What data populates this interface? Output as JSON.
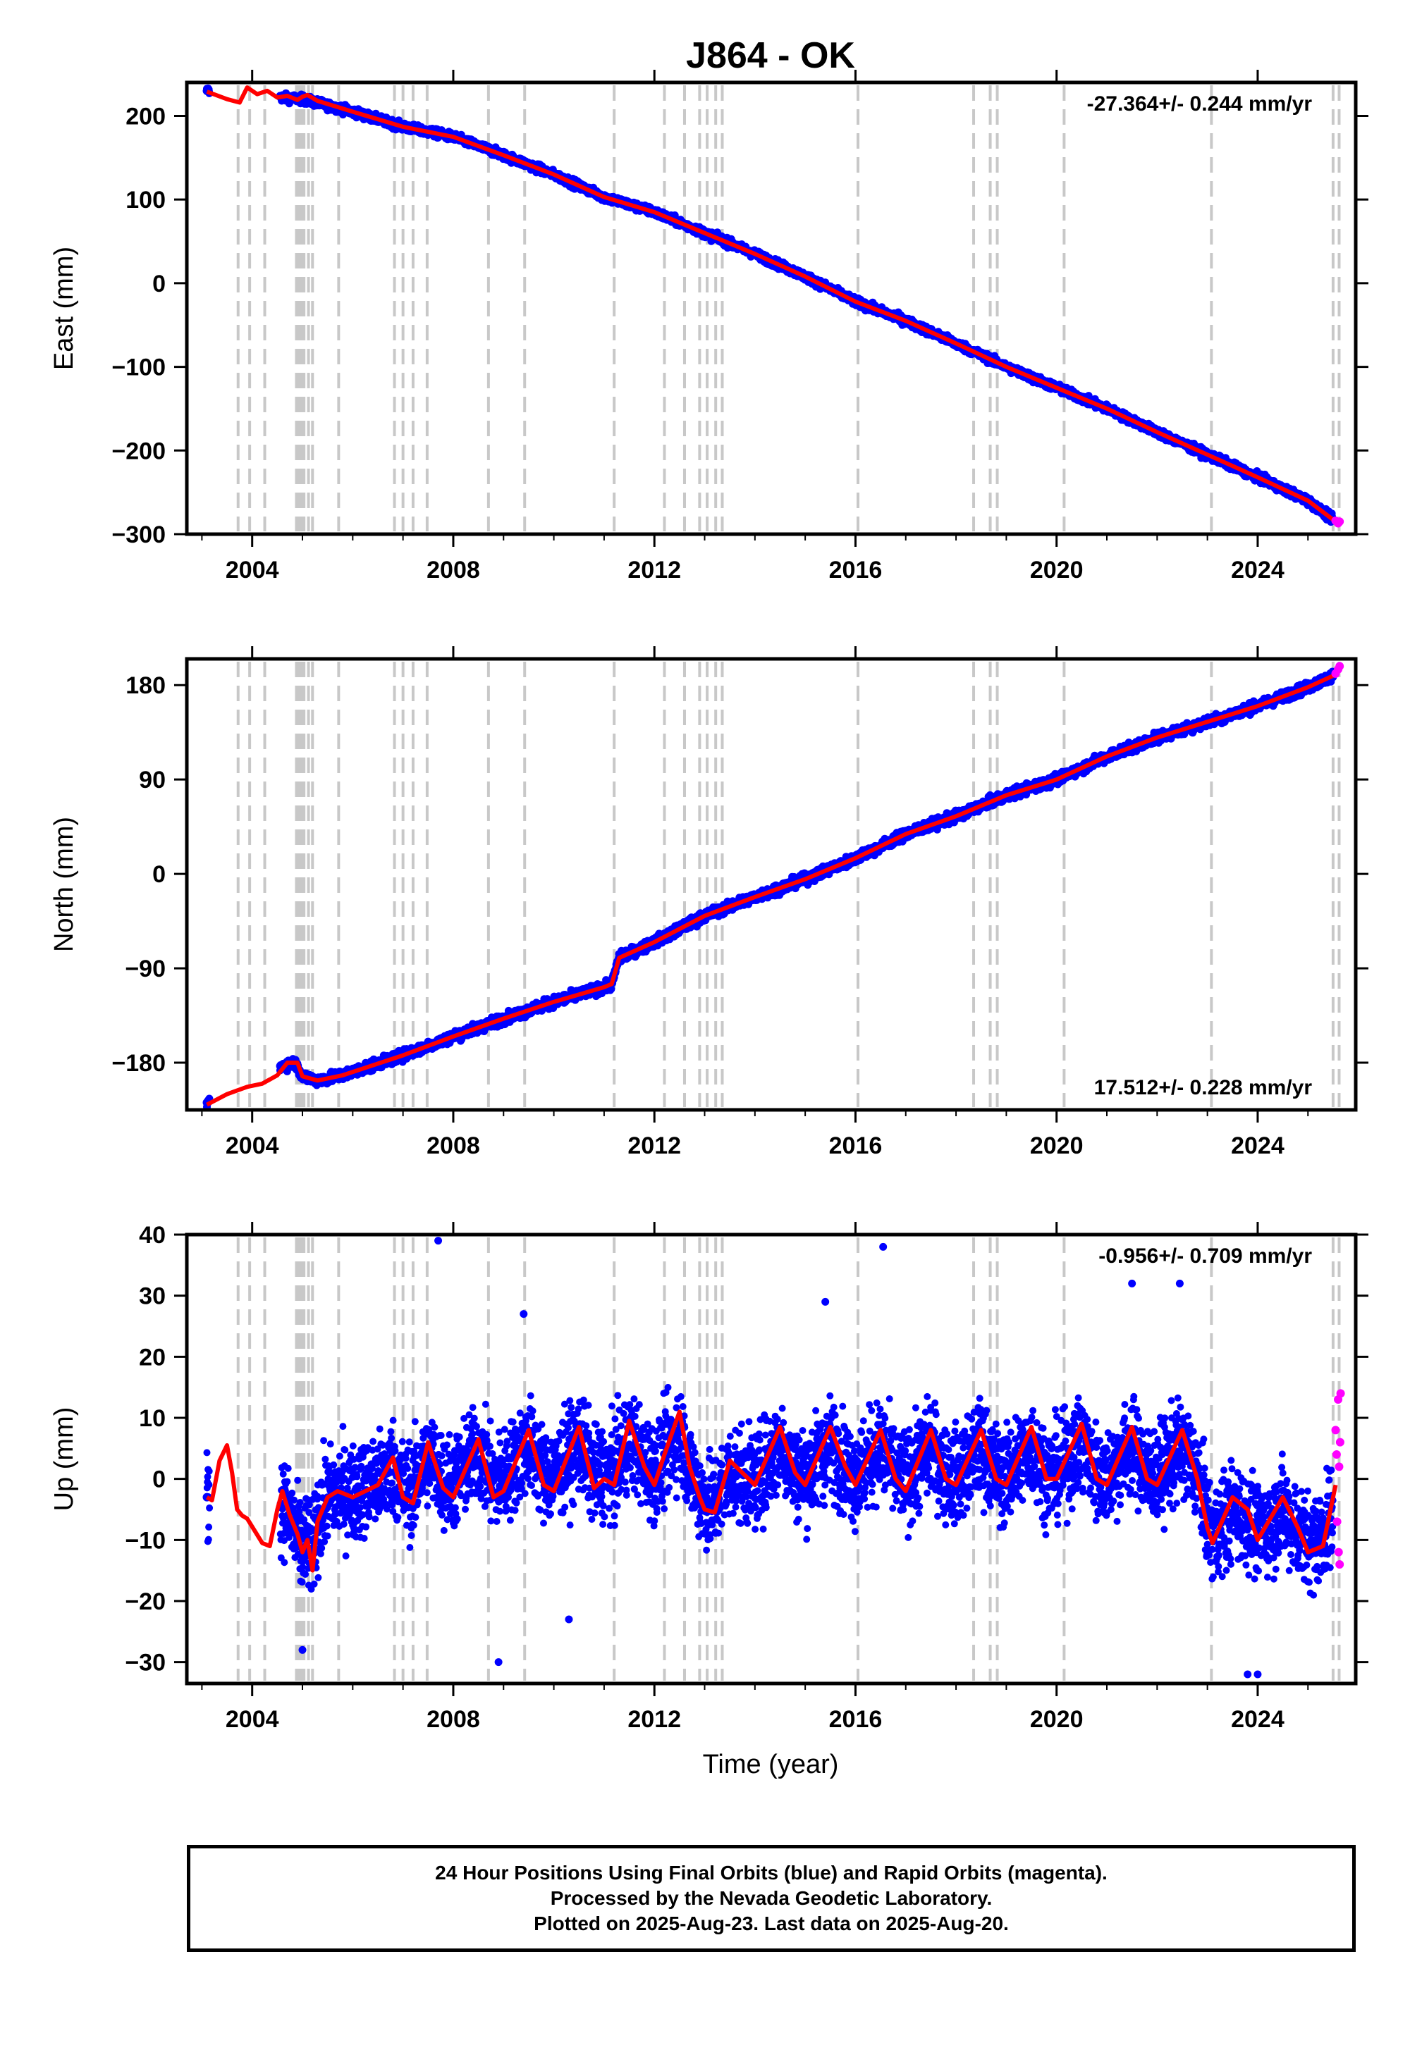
{
  "title": "J864 - OK",
  "xlabel": "Time (year)",
  "caption": {
    "line1": "24 Hour Positions Using Final Orbits (blue) and Rapid Orbits (magenta).",
    "line2": "Processed by the Nevada Geodetic Laboratory.",
    "line3": "Plotted on 2025-Aug-23. Last data on 2025-Aug-20."
  },
  "colors": {
    "final_orbits": "#0000ff",
    "rapid_orbits": "#ff00ff",
    "model_fit": "#ff0000",
    "equipment_change_lines": "#c8c8c8"
  },
  "chart_data": [
    {
      "type": "scatter",
      "name": "east",
      "ylabel": "East (mm)",
      "xlim": [
        2002.7,
        2025.95
      ],
      "ylim": [
        -300,
        240
      ],
      "xticks": [
        2004,
        2008,
        2012,
        2016,
        2020,
        2024
      ],
      "yticks": [
        -300,
        -200,
        -100,
        0,
        100,
        200
      ],
      "ytick_labels": [
        "−300",
        "−200",
        "−100",
        "0",
        "100",
        "200"
      ],
      "velocity_label": "-27.364+/- 0.244 mm/yr",
      "velocity_label_position": "top-right",
      "breaks": [
        2003.72,
        2003.95,
        2004.25,
        2004.88,
        2004.93,
        2004.98,
        2005.03,
        2005.12,
        2005.2,
        2005.72,
        2006.83,
        2007.0,
        2007.2,
        2007.48,
        2008.7,
        2009.42,
        2011.2,
        2012.2,
        2012.6,
        2012.9,
        2013.05,
        2013.22,
        2013.35,
        2016.05,
        2018.35,
        2018.68,
        2018.82,
        2020.15,
        2023.08,
        2025.5,
        2025.62
      ],
      "fit_x": [
        2003.1,
        2003.5,
        2003.75,
        2003.9,
        2004.1,
        2004.3,
        2004.5,
        2004.7,
        2004.9,
        2005.0,
        2005.1,
        2005.3,
        2006.0,
        2007.0,
        2008.0,
        2009.0,
        2010.0,
        2011.0,
        2012.0,
        2013.0,
        2014.0,
        2015.0,
        2016.0,
        2017.0,
        2018.0,
        2019.0,
        2020.0,
        2021.0,
        2022.0,
        2023.0,
        2024.0,
        2025.0,
        2025.55
      ],
      "fit_y": [
        229,
        220,
        216,
        234,
        226,
        230,
        222,
        224,
        219,
        223,
        225,
        218,
        205,
        187,
        175,
        153,
        130,
        103,
        85,
        60,
        35,
        8,
        -22,
        -45,
        -72,
        -100,
        -125,
        -150,
        -178,
        -205,
        -232,
        -260,
        -285
      ],
      "final_x": [
        2003.1,
        2004.6,
        2005.0,
        2006.0,
        2007.0,
        2008.0,
        2009.0,
        2010.0,
        2011.0,
        2012.0,
        2013.0,
        2014.0,
        2015.0,
        2016.0,
        2017.0,
        2018.0,
        2019.0,
        2020.0,
        2021.0,
        2022.0,
        2023.0,
        2024.0,
        2025.0,
        2025.5
      ],
      "final_y": [
        230,
        222,
        220,
        205,
        187,
        175,
        153,
        130,
        103,
        85,
        60,
        35,
        8,
        -22,
        -45,
        -72,
        -100,
        -125,
        -150,
        -178,
        -205,
        -232,
        -260,
        -283
      ],
      "final_noise": 3.5,
      "rapid_x": [
        2025.55,
        2025.6,
        2025.63
      ],
      "rapid_y": [
        -284,
        -287,
        -285
      ]
    },
    {
      "type": "scatter",
      "name": "north",
      "ylabel": "North (mm)",
      "xlim": [
        2002.7,
        2025.95
      ],
      "ylim": [
        -225,
        205
      ],
      "xticks": [
        2004,
        2008,
        2012,
        2016,
        2020,
        2024
      ],
      "yticks": [
        -180,
        -90,
        0,
        90,
        180
      ],
      "ytick_labels": [
        "−180",
        "−90",
        "0",
        "90",
        "180"
      ],
      "velocity_label": "17.512+/- 0.228 mm/yr",
      "velocity_label_position": "bottom-right",
      "breaks": [
        2003.72,
        2003.95,
        2004.25,
        2004.88,
        2004.93,
        2004.98,
        2005.03,
        2005.12,
        2005.2,
        2005.72,
        2006.83,
        2007.0,
        2007.2,
        2007.48,
        2008.7,
        2009.42,
        2011.2,
        2012.2,
        2012.6,
        2012.9,
        2013.05,
        2013.22,
        2013.35,
        2016.05,
        2018.35,
        2018.68,
        2018.82,
        2020.15,
        2023.08,
        2025.5,
        2025.62
      ],
      "fit_x": [
        2003.1,
        2003.5,
        2003.9,
        2004.2,
        2004.5,
        2004.7,
        2004.9,
        2005.0,
        2005.3,
        2005.8,
        2007.0,
        2008.0,
        2009.0,
        2010.0,
        2011.0,
        2011.15,
        2011.3,
        2012.0,
        2013.0,
        2014.0,
        2015.0,
        2016.0,
        2017.0,
        2018.0,
        2019.0,
        2020.0,
        2021.0,
        2022.0,
        2023.0,
        2024.0,
        2025.0,
        2025.55
      ],
      "fit_y": [
        -220,
        -210,
        -203,
        -200,
        -192,
        -180,
        -180,
        -193,
        -197,
        -192,
        -173,
        -155,
        -138,
        -122,
        -108,
        -105,
        -80,
        -65,
        -40,
        -22,
        -5,
        15,
        38,
        55,
        75,
        90,
        112,
        130,
        145,
        160,
        178,
        190
      ],
      "final_x": [
        2003.1,
        2004.6,
        2004.85,
        2005.0,
        2005.3,
        2005.8,
        2007.0,
        2008.0,
        2009.0,
        2010.0,
        2011.0,
        2011.15,
        2011.3,
        2012.0,
        2013.0,
        2014.0,
        2015.0,
        2016.0,
        2017.0,
        2018.0,
        2019.0,
        2020.0,
        2021.0,
        2022.0,
        2023.0,
        2024.0,
        2025.0,
        2025.5
      ],
      "final_y": [
        -218,
        -183,
        -180,
        -193,
        -197,
        -192,
        -173,
        -155,
        -138,
        -122,
        -108,
        -105,
        -80,
        -65,
        -40,
        -22,
        -5,
        15,
        38,
        55,
        75,
        90,
        112,
        130,
        145,
        160,
        178,
        189
      ],
      "final_noise": 3.5,
      "rapid_x": [
        2025.55,
        2025.6,
        2025.63
      ],
      "rapid_y": [
        191,
        195,
        198
      ]
    },
    {
      "type": "scatter",
      "name": "up",
      "ylabel": "Up (mm)",
      "xlim": [
        2002.7,
        2025.95
      ],
      "ylim": [
        -33.5,
        40
      ],
      "xticks": [
        2004,
        2008,
        2012,
        2016,
        2020,
        2024
      ],
      "yticks": [
        -30,
        -20,
        -10,
        0,
        10,
        20,
        30,
        40
      ],
      "ytick_labels": [
        "−30",
        "−20",
        "−10",
        "0",
        "10",
        "20",
        "30",
        "40"
      ],
      "velocity_label": "-0.956+/- 0.709 mm/yr",
      "velocity_label_position": "top-right",
      "breaks": [
        2003.72,
        2003.95,
        2004.25,
        2004.88,
        2004.93,
        2004.98,
        2005.03,
        2005.12,
        2005.2,
        2005.72,
        2006.83,
        2007.0,
        2007.2,
        2007.48,
        2008.7,
        2009.42,
        2011.2,
        2012.2,
        2012.6,
        2012.9,
        2013.05,
        2013.22,
        2013.35,
        2016.05,
        2018.35,
        2018.68,
        2018.82,
        2020.15,
        2023.08,
        2025.5,
        2025.62
      ],
      "fit_x": [
        2003.1,
        2003.2,
        2003.35,
        2003.5,
        2003.6,
        2003.7,
        2003.8,
        2003.9,
        2004.05,
        2004.2,
        2004.35,
        2004.5,
        2004.6,
        2004.75,
        2004.9,
        2005.0,
        2005.1,
        2005.2,
        2005.3,
        2005.5,
        2005.7,
        2006.0,
        2006.5,
        2006.8,
        2007.0,
        2007.2,
        2007.5,
        2007.8,
        2008.0,
        2008.5,
        2008.8,
        2009.0,
        2009.5,
        2009.8,
        2010.0,
        2010.5,
        2010.8,
        2011.0,
        2011.2,
        2011.5,
        2011.8,
        2012.0,
        2012.2,
        2012.5,
        2012.7,
        2012.9,
        2013.0,
        2013.2,
        2013.5,
        2014.0,
        2014.5,
        2014.8,
        2015.0,
        2015.5,
        2015.8,
        2016.0,
        2016.5,
        2016.8,
        2017.0,
        2017.5,
        2017.8,
        2018.0,
        2018.5,
        2018.8,
        2019.0,
        2019.5,
        2019.8,
        2020.0,
        2020.5,
        2020.8,
        2021.0,
        2021.5,
        2021.8,
        2022.0,
        2022.5,
        2022.8,
        2023.0,
        2023.1,
        2023.5,
        2023.8,
        2024.0,
        2024.5,
        2024.8,
        2025.0,
        2025.3,
        2025.55
      ],
      "fit_y": [
        -3,
        -3.5,
        3,
        5.5,
        1,
        -5,
        -6,
        -6.5,
        -8.5,
        -10.5,
        -11,
        -5,
        -2,
        -6,
        -9,
        -12,
        -10,
        -15,
        -7,
        -3,
        -2,
        -3,
        -1,
        3.5,
        -3,
        -4,
        6,
        -1.5,
        -3,
        6.5,
        -3,
        -2,
        8,
        -1,
        -2,
        8.5,
        -1.5,
        0,
        -1,
        9.5,
        2,
        -1,
        4,
        11,
        2,
        -3,
        -5,
        -5.5,
        3,
        -1,
        8.5,
        1,
        -1,
        8.5,
        2,
        -1,
        8,
        0,
        -2,
        8,
        0,
        -1,
        8,
        0,
        -1,
        8.5,
        0,
        0,
        9,
        0,
        -1,
        8.5,
        0,
        -1,
        8,
        0,
        -8,
        -10.5,
        -3,
        -5,
        -10,
        -3,
        -8,
        -12,
        -11,
        -1
      ],
      "final_x": [
        2003.1,
        2004.6,
        2005.0,
        2005.5,
        2006.5,
        2008.0,
        2009.5,
        2011.0,
        2012.5,
        2013.0,
        2014.5,
        2016.0,
        2017.5,
        2019.0,
        2020.5,
        2022.0,
        2022.8,
        2023.1,
        2024.0,
        2025.0,
        2025.5
      ],
      "final_y": [
        -3,
        -5,
        -12,
        -3,
        0,
        2,
        3,
        3,
        4,
        -3,
        2,
        2,
        2,
        2,
        2,
        2,
        2,
        -8,
        -8,
        -9,
        -6
      ],
      "final_noise": 5.5,
      "rapid_x": [
        2025.55,
        2025.57,
        2025.58,
        2025.6,
        2025.61,
        2025.62,
        2025.63,
        2025.64,
        2025.65
      ],
      "rapid_y": [
        8,
        4,
        -7,
        13,
        -12,
        2,
        -14,
        6,
        14
      ],
      "outliers_x": [
        2007.7,
        2016.55,
        2009.4,
        2015.4,
        2021.5,
        2022.45,
        2008.9,
        2023.8,
        2024.0,
        2010.3,
        2005.0
      ],
      "outliers_y": [
        39,
        38,
        27,
        29,
        32,
        32,
        -30,
        -32,
        -32,
        -23,
        -28
      ]
    }
  ]
}
